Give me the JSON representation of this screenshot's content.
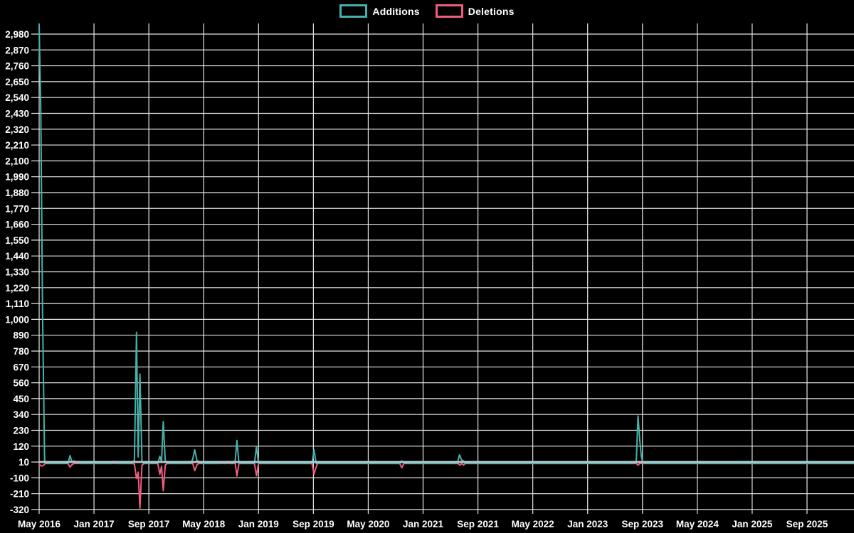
{
  "legend": [
    {
      "label": "Additions",
      "color": "#45b2aa"
    },
    {
      "label": "Deletions",
      "color": "#f05c7e"
    }
  ],
  "chart_data": {
    "type": "line",
    "title": "",
    "xlabel": "",
    "ylabel": "",
    "background": "#000000",
    "grid_color": "#e6e6e6",
    "zero_line_color": "#b7c3ca",
    "label_color": "#ffffff",
    "x_tick_labels": [
      "May 2016",
      "Jan 2017",
      "Sep 2017",
      "May 2018",
      "Jan 2019",
      "Sep 2019",
      "May 2020",
      "Jan 2021",
      "Sep 2021",
      "May 2022",
      "Jan 2023",
      "Sep 2023",
      "May 2024",
      "Jan 2025",
      "Sep 2025"
    ],
    "x_months_per_tick": 8,
    "y_tick_labels": [
      "2,980",
      "2,870",
      "2,760",
      "2,650",
      "2,540",
      "2,430",
      "2,320",
      "2,210",
      "2,100",
      "1,990",
      "1,880",
      "1,770",
      "1,660",
      "1,550",
      "1,440",
      "1,330",
      "1,220",
      "1,110",
      "1,000",
      "890",
      "780",
      "670",
      "560",
      "450",
      "340",
      "230",
      "120",
      "10",
      "-100",
      "-210",
      "-320"
    ],
    "y_tick_max": 2980,
    "y_tick_min": -320,
    "y_tick_step": 110,
    "ylim": [
      -320,
      3044
    ],
    "series": [
      {
        "name": "Deletions",
        "color": "#f05c7e",
        "points": [
          [
            0,
            -5
          ],
          [
            0.3,
            -18
          ],
          [
            0.6,
            -15
          ],
          [
            0.9,
            0
          ],
          [
            4.2,
            0
          ],
          [
            4.5,
            -25
          ],
          [
            4.8,
            -8
          ],
          [
            5.1,
            0
          ],
          [
            13.6,
            0
          ],
          [
            13.9,
            -5
          ],
          [
            14.2,
            -105
          ],
          [
            14.45,
            -60
          ],
          [
            14.7,
            -310
          ],
          [
            15.0,
            -12
          ],
          [
            15.3,
            0
          ],
          [
            17.3,
            0
          ],
          [
            17.6,
            -75
          ],
          [
            17.85,
            -20
          ],
          [
            18.1,
            -190
          ],
          [
            18.4,
            -10
          ],
          [
            18.7,
            0
          ],
          [
            22.4,
            0
          ],
          [
            22.7,
            -50
          ],
          [
            23.0,
            -10
          ],
          [
            23.3,
            0
          ],
          [
            28.6,
            0
          ],
          [
            28.85,
            -87
          ],
          [
            29.15,
            0
          ],
          [
            31.4,
            0
          ],
          [
            31.7,
            -85
          ],
          [
            32.0,
            0
          ],
          [
            39.8,
            0
          ],
          [
            40.1,
            -75
          ],
          [
            40.3,
            -40
          ],
          [
            40.6,
            0
          ],
          [
            52.6,
            0
          ],
          [
            52.9,
            -30
          ],
          [
            53.2,
            0
          ],
          [
            61.1,
            0
          ],
          [
            61.4,
            -12
          ],
          [
            61.65,
            0
          ],
          [
            61.9,
            -12
          ],
          [
            62.15,
            0
          ],
          [
            87.1,
            0
          ],
          [
            87.35,
            -12
          ],
          [
            87.6,
            0
          ],
          [
            119,
            0
          ]
        ]
      },
      {
        "name": "Additions",
        "color": "#45b2aa",
        "points": [
          [
            0,
            3040
          ],
          [
            0.25,
            2420
          ],
          [
            0.5,
            1040
          ],
          [
            0.8,
            20
          ],
          [
            1.1,
            0
          ],
          [
            4.2,
            0
          ],
          [
            4.5,
            55
          ],
          [
            4.8,
            8
          ],
          [
            5.1,
            18
          ],
          [
            5.45,
            0
          ],
          [
            5.75,
            14
          ],
          [
            6.05,
            0
          ],
          [
            10.6,
            0
          ],
          [
            10.9,
            15
          ],
          [
            11.2,
            0
          ],
          [
            13.6,
            0
          ],
          [
            13.9,
            22
          ],
          [
            14.2,
            910
          ],
          [
            14.45,
            45
          ],
          [
            14.7,
            620
          ],
          [
            15.0,
            12
          ],
          [
            15.3,
            0
          ],
          [
            17.3,
            0
          ],
          [
            17.6,
            50
          ],
          [
            17.85,
            12
          ],
          [
            18.1,
            290
          ],
          [
            18.4,
            10
          ],
          [
            18.7,
            0
          ],
          [
            22.1,
            0
          ],
          [
            22.4,
            30
          ],
          [
            22.7,
            95
          ],
          [
            23.0,
            22
          ],
          [
            23.3,
            14
          ],
          [
            23.6,
            0
          ],
          [
            26.3,
            0
          ],
          [
            26.6,
            12
          ],
          [
            26.9,
            0
          ],
          [
            27.3,
            0
          ],
          [
            27.6,
            15
          ],
          [
            27.9,
            0
          ],
          [
            28.3,
            0
          ],
          [
            28.6,
            20
          ],
          [
            28.85,
            160
          ],
          [
            29.15,
            0
          ],
          [
            31.4,
            0
          ],
          [
            31.7,
            115
          ],
          [
            32.0,
            0
          ],
          [
            39.8,
            0
          ],
          [
            40.1,
            95
          ],
          [
            40.4,
            0
          ],
          [
            52.6,
            0
          ],
          [
            52.9,
            18
          ],
          [
            53.2,
            0
          ],
          [
            61.0,
            0
          ],
          [
            61.3,
            60
          ],
          [
            61.6,
            25
          ],
          [
            61.9,
            18
          ],
          [
            62.2,
            0
          ],
          [
            86.8,
            0
          ],
          [
            87.1,
            15
          ],
          [
            87.35,
            330
          ],
          [
            87.6,
            165
          ],
          [
            87.85,
            45
          ],
          [
            88.1,
            0
          ],
          [
            119,
            0
          ]
        ]
      }
    ]
  }
}
